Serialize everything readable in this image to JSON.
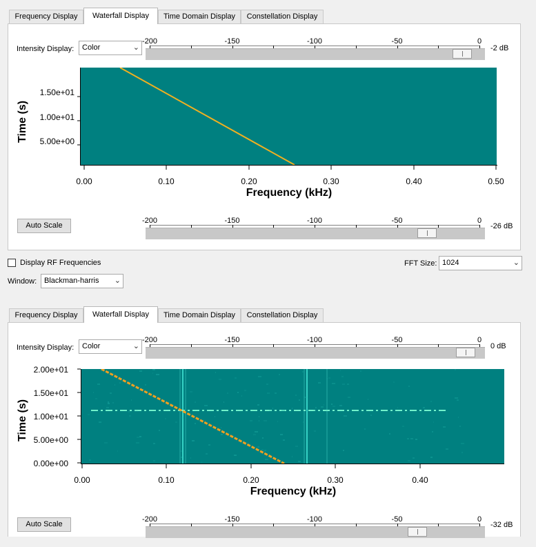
{
  "tabs": [
    "Frequency Display",
    "Waterfall Display",
    "Time Domain Display",
    "Constellation Display"
  ],
  "active_tab": "Waterfall Display",
  "scale_ticks": [
    "-200",
    "-150",
    "-100",
    "-50",
    "0"
  ],
  "top": {
    "intensity_label": "Intensity Display:",
    "intensity_value": "Color",
    "top_slider_db": "-2 dB",
    "top_slider_fraction": 0.96,
    "bottom_slider_db": "-26 dB",
    "bottom_slider_fraction": 0.85,
    "auto_scale": "Auto Scale",
    "plot": {
      "yticks": [
        "1.50e+01",
        "1.00e+01",
        "5.00e+00"
      ],
      "xticks": [
        "0.00",
        "0.10",
        "0.20",
        "0.30",
        "0.40",
        "0.50"
      ],
      "xlabel": "Frequency (kHz)",
      "ylabel": "Time (s)"
    }
  },
  "controls": {
    "rf_label": "Display RF Frequencies",
    "rf_checked": false,
    "fft_label": "FFT Size:",
    "fft_value": "1024",
    "window_label": "Window:",
    "window_value": "Blackman-harris"
  },
  "bottom": {
    "intensity_label": "Intensity Display:",
    "intensity_value": "Color",
    "top_slider_db": "0 dB",
    "top_slider_fraction": 0.97,
    "bottom_slider_db": "-32 dB",
    "bottom_slider_fraction": 0.82,
    "auto_scale": "Auto Scale",
    "plot": {
      "yticks": [
        "2.00e+01",
        "1.50e+01",
        "1.00e+01",
        "5.00e+00",
        "0.00e+00"
      ],
      "xticks": [
        "0.00",
        "0.10",
        "0.20",
        "0.30",
        "0.40"
      ],
      "xlabel": "Frequency (kHz)",
      "ylabel": "Time (s)"
    }
  },
  "colors": {
    "waterfall_bg": "#008080",
    "sweep_line": "#f0b020",
    "noise_cyan": "#40e0d0"
  }
}
